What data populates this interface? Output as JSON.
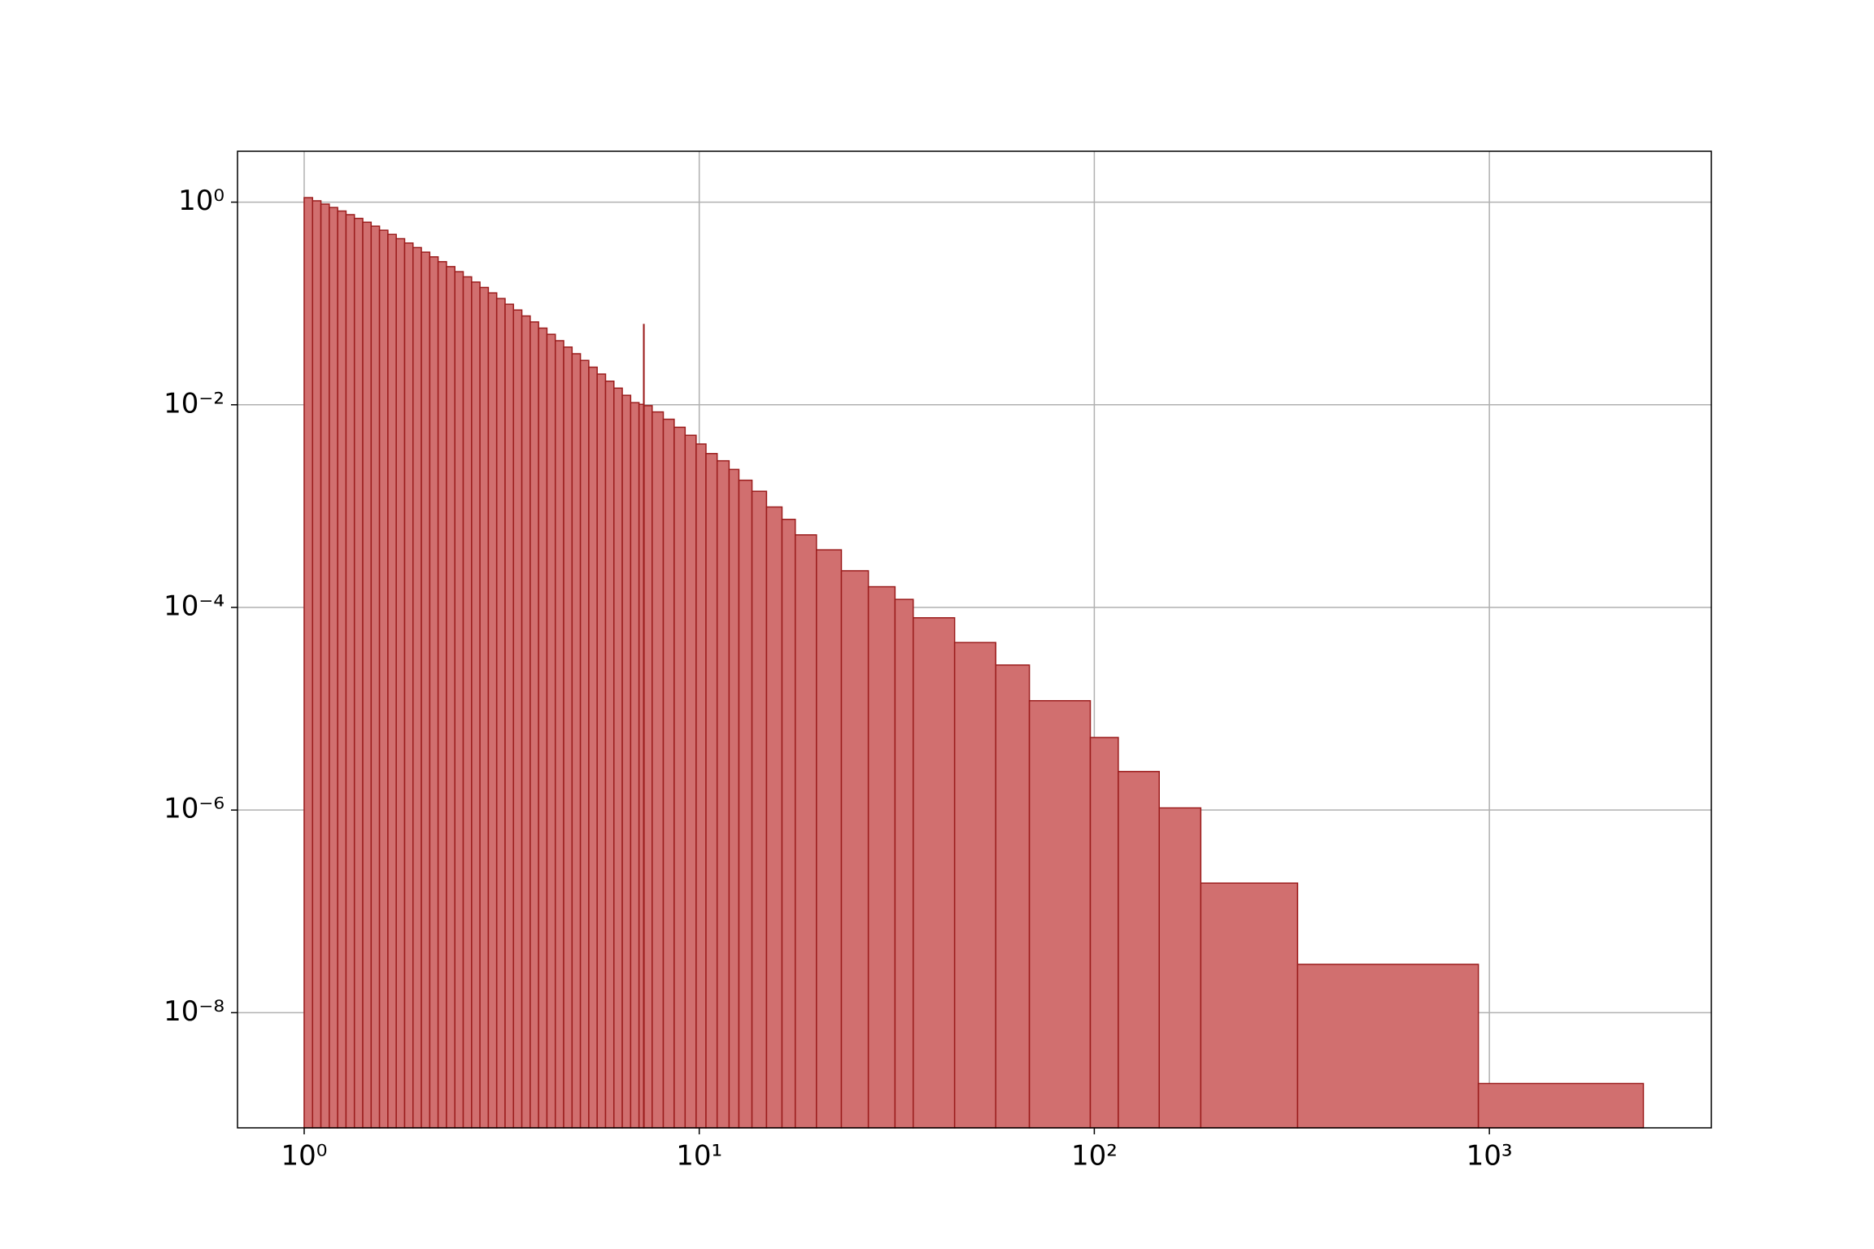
{
  "chart_data": {
    "type": "histogram",
    "bins": [
      1,
      1.05,
      1.1025,
      1.1576,
      1.2155,
      1.2763,
      1.3401,
      1.4071,
      1.4775,
      1.5513,
      1.6289,
      1.7103,
      1.7959,
      1.8856,
      1.9799,
      2.0789,
      2.1829,
      2.292,
      2.4066,
      2.527,
      2.6533,
      2.786,
      2.9253,
      3.0715,
      3.2251,
      3.3864,
      3.5557,
      3.7335,
      3.9201,
      4.1161,
      4.3219,
      4.538,
      4.7649,
      5.0032,
      5.2533,
      5.516,
      5.7918,
      6.0814,
      6.3855,
      6.7048,
      7.04,
      7.23,
      7.25,
      7.6,
      8.11,
      8.64,
      9.21,
      9.82,
      10.4,
      11.1,
      11.9,
      12.6,
      13.6,
      14.8,
      16.2,
      17.5,
      19.8,
      22.9,
      26.8,
      31.3,
      34.8,
      44.3,
      56.3,
      68.5,
      97.7,
      115,
      146,
      186,
      327,
      938,
      2454
    ],
    "values": [
      1.108,
      1.031,
      0.9566,
      0.8855,
      0.8175,
      0.7527,
      0.6914,
      0.6337,
      0.5794,
      0.5283,
      0.4806,
      0.4361,
      0.3948,
      0.3564,
      0.3209,
      0.2884,
      0.2584,
      0.231,
      0.206,
      0.1832,
      0.1626,
      0.1439,
      0.1271,
      0.1119,
      0.0983,
      0.0862,
      0.0753,
      0.0657,
      0.0571,
      0.0496,
      0.0429,
      0.0371,
      0.0319,
      0.0274,
      0.0235,
      0.0201,
      0.0171,
      0.0146,
      0.0124,
      0.0105,
      0.0101,
      0.062,
      0.0098,
      0.0085,
      0.0072,
      0.006,
      0.005,
      0.0041,
      0.0033,
      0.0028,
      0.0023,
      0.0018,
      0.0014,
      0.00098,
      0.00074,
      0.00052,
      0.00037,
      0.00023,
      0.00016,
      0.00012,
      7.9e-05,
      4.5e-05,
      2.7e-05,
      1.2e-05,
      5.2e-06,
      2.4e-06,
      1.05e-06,
      1.9e-07,
      3e-08,
      2e-09
    ],
    "color": "#d16f6f",
    "edgecolor": "#9b1c1c",
    "xscale": "log",
    "yscale": "log",
    "xlim": [
      0.678,
      3646
    ],
    "ylim": [
      7.3e-10,
      3.18
    ],
    "xticks": [
      {
        "value": 1,
        "label": "10⁰"
      },
      {
        "value": 10,
        "label": "10¹"
      },
      {
        "value": 100,
        "label": "10²"
      },
      {
        "value": 1000,
        "label": "10³"
      }
    ],
    "yticks": [
      {
        "value": 1,
        "label": "10⁰"
      },
      {
        "value": 0.01,
        "label": "10⁻²"
      },
      {
        "value": 0.0001,
        "label": "10⁻⁴"
      },
      {
        "value": 1e-06,
        "label": "10⁻⁶"
      },
      {
        "value": 1e-08,
        "label": "10⁻⁸"
      }
    ],
    "grid": true
  }
}
